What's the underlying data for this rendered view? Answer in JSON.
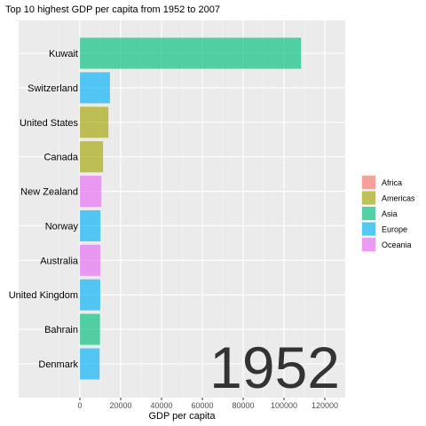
{
  "chart_data": {
    "type": "bar",
    "orientation": "horizontal",
    "title": "Top 10 highest GDP per capita from 1952 to 2007",
    "xlabel": "GDP per capita",
    "ylabel": "",
    "xlim": [
      -30000,
      130000
    ],
    "x_ticks": [
      0,
      20000,
      40000,
      60000,
      80000,
      100000,
      120000
    ],
    "x_tick_labels": [
      "0",
      "20000",
      "40000",
      "60000",
      "80000",
      "100000",
      "120000"
    ],
    "grid": true,
    "legend_position": "right",
    "year": "1952",
    "categories": [
      "Kuwait",
      "Switzerland",
      "United States",
      "Canada",
      "New Zealand",
      "Norway",
      "Australia",
      "United Kingdom",
      "Bahrain",
      "Denmark"
    ],
    "values": [
      108382,
      14734,
      13990,
      11367,
      10557,
      10095,
      10040,
      9980,
      9867,
      9692
    ],
    "continents": [
      "Asia",
      "Europe",
      "Americas",
      "Americas",
      "Oceania",
      "Europe",
      "Oceania",
      "Europe",
      "Asia",
      "Europe"
    ],
    "legend": [
      {
        "name": "Africa",
        "color": "#F8766D"
      },
      {
        "name": "Americas",
        "color": "#A3A500"
      },
      {
        "name": "Asia",
        "color": "#00BF7D"
      },
      {
        "name": "Europe",
        "color": "#00B0F6"
      },
      {
        "name": "Oceania",
        "color": "#E76BF3"
      }
    ]
  }
}
